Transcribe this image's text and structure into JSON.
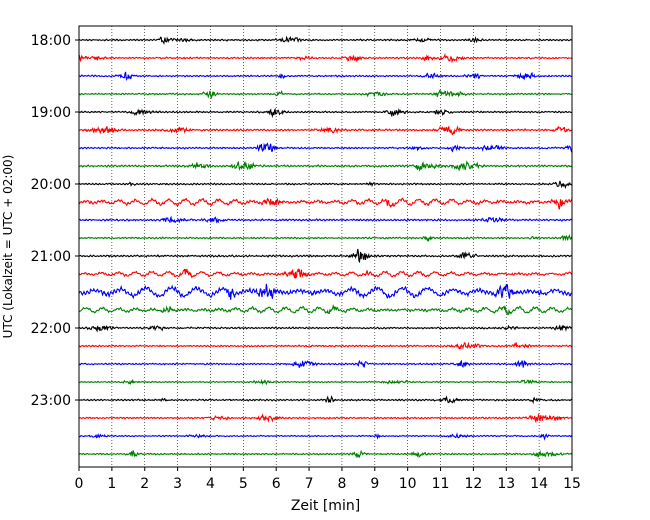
{
  "chart_data": {
    "type": "line",
    "title": "",
    "xlabel": "Zeit  [min]",
    "ylabel": "UTC (Lokalzeit = UTC + 02:00)",
    "xlim": [
      0,
      15
    ],
    "x_ticks": [
      "0",
      "1",
      "2",
      "3",
      "4",
      "5",
      "6",
      "7",
      "8",
      "9",
      "10",
      "11",
      "12",
      "13",
      "14",
      "15"
    ],
    "y_ticks": [
      "18:00",
      "19:00",
      "20:00",
      "21:00",
      "22:00",
      "23:00"
    ],
    "grid": "vertical dotted",
    "trace_interval_min": 15,
    "color_cycle": [
      "#000000",
      "#ff0000",
      "#0000ff",
      "#008000"
    ],
    "traces": [
      {
        "start": "18:00",
        "amplitude": 0.25
      },
      {
        "start": "18:15",
        "amplitude": 0.25
      },
      {
        "start": "18:30",
        "amplitude": 0.25
      },
      {
        "start": "18:45",
        "amplitude": 0.25
      },
      {
        "start": "19:00",
        "amplitude": 0.25
      },
      {
        "start": "19:15",
        "amplitude": 0.3
      },
      {
        "start": "19:30",
        "amplitude": 0.25
      },
      {
        "start": "19:45",
        "amplitude": 0.3
      },
      {
        "start": "20:00",
        "amplitude": 0.25
      },
      {
        "start": "20:15",
        "amplitude": 0.45
      },
      {
        "start": "20:30",
        "amplitude": 0.3
      },
      {
        "start": "20:45",
        "amplitude": 0.25
      },
      {
        "start": "21:00",
        "amplitude": 0.3
      },
      {
        "start": "21:15",
        "amplitude": 0.35
      },
      {
        "start": "21:30",
        "amplitude": 0.7
      },
      {
        "start": "21:45",
        "amplitude": 0.4
      },
      {
        "start": "22:00",
        "amplitude": 0.25
      },
      {
        "start": "22:15",
        "amplitude": 0.25
      },
      {
        "start": "22:30",
        "amplitude": 0.25
      },
      {
        "start": "22:45",
        "amplitude": 0.2
      },
      {
        "start": "23:00",
        "amplitude": 0.25
      },
      {
        "start": "23:15",
        "amplitude": 0.25
      },
      {
        "start": "23:30",
        "amplitude": 0.2
      },
      {
        "start": "23:45",
        "amplitude": 0.25
      }
    ]
  }
}
